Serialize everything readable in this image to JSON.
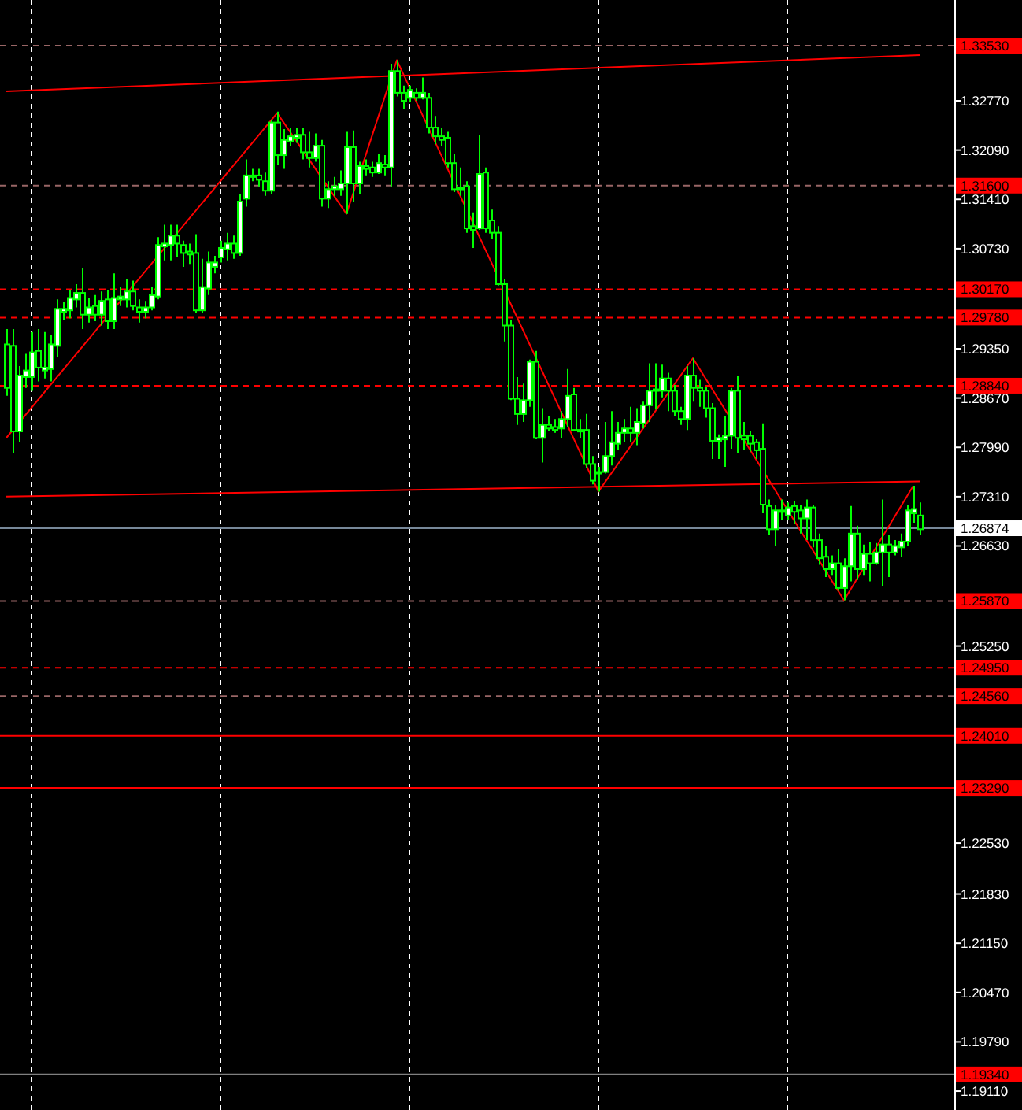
{
  "chart_data": {
    "type": "candlestick",
    "color": "#00ff00",
    "categories": [
      null,
      null,
      null,
      null,
      null,
      null,
      null,
      null,
      null,
      null,
      null,
      null,
      null,
      null,
      null,
      null,
      null,
      null,
      null,
      null,
      null,
      null,
      null,
      null,
      null,
      null,
      null,
      null,
      null,
      null,
      null,
      null,
      null,
      null,
      null,
      null,
      null,
      null,
      null,
      null,
      null,
      null,
      null,
      null,
      null,
      null,
      null,
      null,
      null,
      null,
      null,
      null,
      null,
      null,
      null,
      null,
      null,
      null,
      null,
      null,
      null,
      null,
      null,
      null,
      null,
      null,
      null,
      null,
      null,
      null,
      null,
      null,
      null,
      null,
      null,
      null,
      null,
      null,
      null,
      null,
      null,
      null,
      null,
      null,
      null,
      null,
      null,
      null,
      null,
      null,
      null,
      null,
      null,
      null,
      null,
      null,
      null,
      null,
      null,
      null,
      null,
      null,
      null,
      null,
      null,
      null,
      null,
      null,
      null,
      null,
      null,
      null,
      null,
      null,
      null,
      null,
      null,
      null,
      null,
      null,
      null,
      null,
      null,
      null,
      null,
      null,
      null,
      null,
      null,
      null,
      null,
      null,
      null,
      null,
      null,
      null,
      null,
      null,
      null,
      null,
      null,
      null,
      null,
      null,
      null,
      null
    ],
    "ohlc": [
      [
        1.2941,
        1.2962,
        1.287,
        1.2881
      ],
      [
        1.2939,
        1.2962,
        1.2791,
        1.2821
      ],
      [
        1.2821,
        1.2911,
        1.2806,
        1.2898
      ],
      [
        1.2896,
        1.2928,
        1.2881,
        1.2905
      ],
      [
        1.2896,
        1.2958,
        1.2877,
        1.293
      ],
      [
        1.2932,
        1.2962,
        1.289,
        1.2909
      ],
      [
        1.2905,
        1.2958,
        1.2894,
        1.2909
      ],
      [
        1.2907,
        1.2954,
        1.289,
        1.2941
      ],
      [
        1.2939,
        1.3003,
        1.2924,
        1.299
      ],
      [
        1.2986,
        1.2999,
        1.2975,
        1.299
      ],
      [
        1.2988,
        1.3016,
        1.2977,
        1.3005
      ],
      [
        1.3003,
        1.3024,
        1.2992,
        1.3012
      ],
      [
        1.3012,
        1.3046,
        1.2962,
        1.2982
      ],
      [
        1.2982,
        1.3005,
        1.2971,
        1.2992
      ],
      [
        1.2994,
        1.3009,
        1.2973,
        1.2982
      ],
      [
        1.2982,
        1.3014,
        1.2967,
        1.3001
      ],
      [
        1.3003,
        1.3016,
        1.2962,
        1.2973
      ],
      [
        1.2973,
        1.3039,
        1.2962,
        1.3005
      ],
      [
        1.3003,
        1.302,
        1.2994,
        1.3007
      ],
      [
        1.3003,
        1.3031,
        1.2992,
        1.3014
      ],
      [
        1.3014,
        1.3029,
        1.2988,
        1.2994
      ],
      [
        1.2992,
        1.3003,
        1.2971,
        1.2986
      ],
      [
        1.2986,
        1.3001,
        1.2977,
        1.2992
      ],
      [
        1.2992,
        1.302,
        1.2988,
        1.3009
      ],
      [
        1.3007,
        1.3089,
        1.3003,
        1.3078
      ],
      [
        1.3076,
        1.3106,
        1.3057,
        1.308
      ],
      [
        1.3078,
        1.3106,
        1.3057,
        1.3091
      ],
      [
        1.3091,
        1.3106,
        1.3061,
        1.308
      ],
      [
        1.3078,
        1.3084,
        1.3048,
        1.3067
      ],
      [
        1.3069,
        1.308,
        1.3052,
        1.3065
      ],
      [
        1.3067,
        1.3093,
        1.2984,
        1.2988
      ],
      [
        1.2988,
        1.3059,
        1.2984,
        1.302
      ],
      [
        1.3018,
        1.3069,
        1.3009,
        1.3054
      ],
      [
        1.3048,
        1.3063,
        1.3039,
        1.3054
      ],
      [
        1.3061,
        1.3084,
        1.3054,
        1.3074
      ],
      [
        1.3072,
        1.3095,
        1.3057,
        1.308
      ],
      [
        1.308,
        1.3091,
        1.3059,
        1.3067
      ],
      [
        1.3067,
        1.3149,
        1.3063,
        1.3138
      ],
      [
        1.3142,
        1.3196,
        1.3131,
        1.3174
      ],
      [
        1.3172,
        1.3183,
        1.3166,
        1.3174
      ],
      [
        1.3174,
        1.3183,
        1.3159,
        1.3168
      ],
      [
        1.3166,
        1.3178,
        1.3146,
        1.3153
      ],
      [
        1.3153,
        1.3251,
        1.3149,
        1.3247
      ],
      [
        1.3247,
        1.3262,
        1.3189,
        1.3202
      ],
      [
        1.3202,
        1.3238,
        1.3183,
        1.3223
      ],
      [
        1.3221,
        1.324,
        1.3215,
        1.3228
      ],
      [
        1.3226,
        1.324,
        1.3219,
        1.323
      ],
      [
        1.323,
        1.324,
        1.3196,
        1.3206
      ],
      [
        1.3206,
        1.3234,
        1.3185,
        1.3198
      ],
      [
        1.3198,
        1.3232,
        1.3193,
        1.3215
      ],
      [
        1.3215,
        1.3223,
        1.3131,
        1.3142
      ],
      [
        1.3142,
        1.3166,
        1.3129,
        1.3155
      ],
      [
        1.3155,
        1.3172,
        1.3146,
        1.3159
      ],
      [
        1.3155,
        1.3181,
        1.3146,
        1.3163
      ],
      [
        1.3163,
        1.3234,
        1.3121,
        1.3213
      ],
      [
        1.3213,
        1.3236,
        1.3138,
        1.3163
      ],
      [
        1.3163,
        1.3193,
        1.3149,
        1.3187
      ],
      [
        1.3187,
        1.3196,
        1.3174,
        1.3183
      ],
      [
        1.3185,
        1.3193,
        1.3172,
        1.3178
      ],
      [
        1.3178,
        1.3204,
        1.3176,
        1.3191
      ],
      [
        1.3189,
        1.3202,
        1.3174,
        1.3185
      ],
      [
        1.3185,
        1.3328,
        1.3159,
        1.3318
      ],
      [
        1.3318,
        1.3333,
        1.3283,
        1.3288
      ],
      [
        1.3288,
        1.3298,
        1.3266,
        1.3277
      ],
      [
        1.3281,
        1.3298,
        1.3275,
        1.3292
      ],
      [
        1.3288,
        1.3294,
        1.3277,
        1.3281
      ],
      [
        1.3281,
        1.3309,
        1.3279,
        1.3288
      ],
      [
        1.3281,
        1.3288,
        1.3232,
        1.324
      ],
      [
        1.324,
        1.3256,
        1.3217,
        1.3228
      ],
      [
        1.3228,
        1.324,
        1.3215,
        1.3223
      ],
      [
        1.3226,
        1.3234,
        1.3185,
        1.3191
      ],
      [
        1.3191,
        1.3204,
        1.3151,
        1.3155
      ],
      [
        1.3157,
        1.3185,
        1.3146,
        1.3155
      ],
      [
        1.3159,
        1.3166,
        1.3095,
        1.3101
      ],
      [
        1.3104,
        1.3123,
        1.3074,
        1.3099
      ],
      [
        1.3101,
        1.323,
        1.3099,
        1.3176
      ],
      [
        1.3178,
        1.3185,
        1.3095,
        1.3101
      ],
      [
        1.3112,
        1.3127,
        1.3086,
        1.3095
      ],
      [
        1.3095,
        1.3104,
        1.3022,
        1.3024
      ],
      [
        1.3024,
        1.3031,
        1.2945,
        1.2967
      ],
      [
        1.2967,
        1.2975,
        1.2864,
        1.2866
      ],
      [
        1.2866,
        1.2896,
        1.283,
        1.2845
      ],
      [
        1.2845,
        1.2887,
        1.2834,
        1.2864
      ],
      [
        1.2864,
        1.292,
        1.2855,
        1.2917
      ],
      [
        1.2917,
        1.2932,
        1.281,
        1.2812
      ],
      [
        1.2812,
        1.2853,
        1.2778,
        1.283
      ],
      [
        1.283,
        1.2842,
        1.2821,
        1.2825
      ],
      [
        1.2827,
        1.2838,
        1.2819,
        1.2823
      ],
      [
        1.2825,
        1.2849,
        1.2812,
        1.2838
      ],
      [
        1.2838,
        1.2907,
        1.2827,
        1.287
      ],
      [
        1.2872,
        1.2881,
        1.2821,
        1.2823
      ],
      [
        1.2823,
        1.2838,
        1.2812,
        1.2821
      ],
      [
        1.2823,
        1.2845,
        1.277,
        1.2776
      ],
      [
        1.2776,
        1.2787,
        1.2748,
        1.2753
      ],
      [
        1.2763,
        1.2772,
        1.2738,
        1.2765
      ],
      [
        1.2765,
        1.2834,
        1.2763,
        1.2787
      ],
      [
        1.2787,
        1.2849,
        1.2774,
        1.2806
      ],
      [
        1.2804,
        1.2834,
        1.2795,
        1.2819
      ],
      [
        1.2819,
        1.2838,
        1.2806,
        1.2825
      ],
      [
        1.2825,
        1.2855,
        1.2806,
        1.2819
      ],
      [
        1.2819,
        1.2853,
        1.2802,
        1.2834
      ],
      [
        1.2832,
        1.2862,
        1.2825,
        1.2857
      ],
      [
        1.2857,
        1.2915,
        1.2834,
        1.2877
      ],
      [
        1.2877,
        1.2915,
        1.2851,
        1.2879
      ],
      [
        1.2877,
        1.2913,
        1.2868,
        1.2894
      ],
      [
        1.2894,
        1.2902,
        1.2849,
        1.2877
      ],
      [
        1.2877,
        1.2885,
        1.2842,
        1.2849
      ],
      [
        1.2849,
        1.2855,
        1.283,
        1.2838
      ],
      [
        1.2838,
        1.2911,
        1.2823,
        1.2898
      ],
      [
        1.2898,
        1.2922,
        1.2862,
        1.2881
      ],
      [
        1.2881,
        1.2892,
        1.2855,
        1.2877
      ],
      [
        1.2877,
        1.2883,
        1.284,
        1.2853
      ],
      [
        1.2853,
        1.286,
        1.2783,
        1.2808
      ],
      [
        1.2808,
        1.2817,
        1.2783,
        1.2812
      ],
      [
        1.281,
        1.2842,
        1.2772,
        1.2815
      ],
      [
        1.2815,
        1.2881,
        1.2797,
        1.2877
      ],
      [
        1.2877,
        1.2898,
        1.2791,
        1.2812
      ],
      [
        1.2815,
        1.2834,
        1.2795,
        1.281
      ],
      [
        1.2815,
        1.2821,
        1.2793,
        1.2804
      ],
      [
        1.2806,
        1.281,
        1.2783,
        1.2795
      ],
      [
        1.2797,
        1.2832,
        1.2708,
        1.272
      ],
      [
        1.2718,
        1.2727,
        1.2678,
        1.2686
      ],
      [
        1.2686,
        1.272,
        1.2663,
        1.2712
      ],
      [
        1.2712,
        1.2727,
        1.2699,
        1.271
      ],
      [
        1.2705,
        1.2723,
        1.2699,
        1.2716
      ],
      [
        1.2718,
        1.2725,
        1.2693,
        1.271
      ],
      [
        1.2712,
        1.272,
        1.268,
        1.2701
      ],
      [
        1.2701,
        1.2727,
        1.2671,
        1.2716
      ],
      [
        1.2716,
        1.272,
        1.2661,
        1.2671
      ],
      [
        1.2671,
        1.268,
        1.2637,
        1.2646
      ],
      [
        1.2648,
        1.2663,
        1.262,
        1.2631
      ],
      [
        1.2631,
        1.265,
        1.2622,
        1.2639
      ],
      [
        1.2639,
        1.2658,
        1.2601,
        1.2605
      ],
      [
        1.2605,
        1.2646,
        1.2588,
        1.2635
      ],
      [
        1.2635,
        1.2718,
        1.2614,
        1.268
      ],
      [
        1.268,
        1.2691,
        1.2616,
        1.2631
      ],
      [
        1.2631,
        1.2665,
        1.2622,
        1.2652
      ],
      [
        1.2652,
        1.2669,
        1.2614,
        1.2639
      ],
      [
        1.2639,
        1.2667,
        1.2637,
        1.2654
      ],
      [
        1.2654,
        1.2727,
        1.2607,
        1.2665
      ],
      [
        1.2665,
        1.2678,
        1.262,
        1.2654
      ],
      [
        1.2654,
        1.2671,
        1.265,
        1.2663
      ],
      [
        1.2661,
        1.268,
        1.2648,
        1.2669
      ],
      [
        1.2669,
        1.272,
        1.2663,
        1.2712
      ],
      [
        1.2708,
        1.2746,
        1.2695,
        1.2714
      ],
      [
        1.2705,
        1.2723,
        1.2678,
        1.2686
      ]
    ],
    "series": [
      {
        "type": "line",
        "color": "#ff0000",
        "values": [
          1.2812,
          null,
          null,
          null,
          null,
          null,
          null,
          null,
          null,
          null,
          null,
          null,
          null,
          null,
          null,
          null,
          null,
          null,
          null,
          null,
          null,
          null,
          null,
          null,
          null,
          null,
          null,
          null,
          null,
          null,
          null,
          null,
          null,
          null,
          null,
          null,
          null,
          null,
          null,
          null,
          null,
          null,
          null,
          1.326,
          null,
          null,
          null,
          null,
          null,
          null,
          null,
          null,
          null,
          null,
          1.3121,
          null,
          null,
          null,
          null,
          null,
          null,
          null,
          1.3333,
          null,
          null,
          null,
          null,
          null,
          null,
          null,
          null,
          null,
          null,
          null,
          null,
          null,
          null,
          null,
          null,
          null,
          null,
          null,
          null,
          null,
          null,
          null,
          null,
          null,
          null,
          null,
          null,
          null,
          null,
          null,
          1.2738,
          null,
          null,
          null,
          null,
          null,
          null,
          null,
          null,
          null,
          null,
          null,
          null,
          null,
          null,
          1.2922,
          null,
          null,
          null,
          null,
          null,
          null,
          null,
          null,
          null,
          null,
          null,
          null,
          null,
          null,
          null,
          null,
          null,
          null,
          null,
          null,
          null,
          null,
          null,
          1.2588,
          null,
          null,
          null,
          null,
          null,
          null,
          null,
          null,
          null,
          null,
          1.2746,
          null
        ]
      },
      {
        "type": "line",
        "color": "#ff0000",
        "values": [
          1.329,
          null,
          null,
          null,
          null,
          null,
          null,
          null,
          null,
          null,
          null,
          null,
          null,
          null,
          null,
          null,
          null,
          null,
          null,
          null,
          null,
          null,
          null,
          null,
          null,
          null,
          null,
          null,
          null,
          null,
          null,
          null,
          null,
          null,
          null,
          null,
          null,
          null,
          null,
          null,
          null,
          null,
          null,
          null,
          null,
          null,
          null,
          null,
          null,
          null,
          null,
          null,
          null,
          null,
          null,
          null,
          null,
          null,
          null,
          null,
          null,
          null,
          null,
          null,
          null,
          null,
          null,
          null,
          null,
          null,
          null,
          null,
          null,
          null,
          null,
          null,
          null,
          null,
          null,
          null,
          null,
          null,
          null,
          null,
          null,
          null,
          null,
          null,
          null,
          null,
          null,
          null,
          null,
          null,
          null,
          null,
          null,
          null,
          null,
          null,
          null,
          null,
          null,
          null,
          null,
          null,
          null,
          null,
          null,
          null,
          null,
          null,
          null,
          null,
          null,
          null,
          null,
          null,
          null,
          null,
          null,
          null,
          null,
          null,
          null,
          null,
          null,
          null,
          null,
          null,
          null,
          null,
          null,
          null,
          null,
          null,
          null,
          null,
          null,
          null,
          null,
          null,
          null,
          null,
          null,
          1.334
        ]
      },
      {
        "type": "line",
        "color": "#ff0000",
        "values": [
          1.2731,
          null,
          null,
          null,
          null,
          null,
          null,
          null,
          null,
          null,
          null,
          null,
          null,
          null,
          null,
          null,
          null,
          null,
          null,
          null,
          null,
          null,
          null,
          null,
          null,
          null,
          null,
          null,
          null,
          null,
          null,
          null,
          null,
          null,
          null,
          null,
          null,
          null,
          null,
          null,
          null,
          null,
          null,
          null,
          null,
          null,
          null,
          null,
          null,
          null,
          null,
          null,
          null,
          null,
          null,
          null,
          null,
          null,
          null,
          null,
          null,
          null,
          null,
          null,
          null,
          null,
          null,
          null,
          null,
          null,
          null,
          null,
          null,
          null,
          null,
          null,
          null,
          null,
          null,
          null,
          null,
          null,
          null,
          null,
          null,
          null,
          null,
          null,
          null,
          null,
          null,
          null,
          null,
          null,
          null,
          null,
          null,
          null,
          null,
          null,
          null,
          null,
          null,
          null,
          null,
          null,
          null,
          null,
          null,
          null,
          null,
          null,
          null,
          null,
          null,
          null,
          null,
          null,
          null,
          null,
          null,
          null,
          null,
          null,
          null,
          null,
          null,
          null,
          null,
          null,
          null,
          null,
          null,
          null,
          null,
          null,
          null,
          null,
          null,
          null,
          null,
          null,
          null,
          null,
          null,
          1.2752
        ]
      }
    ],
    "ylim": [
      1.1885,
      1.3416
    ],
    "yticks": [
      {
        "value": 1.3277,
        "label": "1.32770"
      },
      {
        "value": 1.3209,
        "label": "1.32090"
      },
      {
        "value": 1.3141,
        "label": "1.31410"
      },
      {
        "value": 1.3073,
        "label": "1.30730"
      },
      {
        "value": 1.2935,
        "label": "1.29350"
      },
      {
        "value": 1.2867,
        "label": "1.28670"
      },
      {
        "value": 1.2799,
        "label": "1.27990"
      },
      {
        "value": 1.2731,
        "label": "1.27310"
      },
      {
        "value": 1.2663,
        "label": "1.26630"
      },
      {
        "value": 1.2525,
        "label": "1.25250"
      },
      {
        "value": 1.2253,
        "label": "1.22530"
      },
      {
        "value": 1.2183,
        "label": "1.21830"
      },
      {
        "value": 1.2115,
        "label": "1.21150"
      },
      {
        "value": 1.2047,
        "label": "1.20470"
      },
      {
        "value": 1.1979,
        "label": "1.19790"
      },
      {
        "value": 1.1911,
        "label": "1.19110"
      }
    ],
    "ref_lines": [
      {
        "axis": "y",
        "value": 1.3353,
        "label": "1.33530",
        "color": "#996666",
        "line_style": "dashed"
      },
      {
        "axis": "y",
        "value": 1.316,
        "label": "1.31600",
        "color": "#996666",
        "line_style": "dashed"
      },
      {
        "axis": "y",
        "value": 1.3017,
        "label": "1.30170",
        "color": "#ff0000",
        "line_style": "dashed"
      },
      {
        "axis": "y",
        "value": 1.2978,
        "label": "1.29780",
        "color": "#ff0000",
        "line_style": "dashed"
      },
      {
        "axis": "y",
        "value": 1.2884,
        "label": "1.28840",
        "color": "#ff0000",
        "line_style": "dashed"
      },
      {
        "axis": "y",
        "value": 1.26874,
        "label": "1.26874",
        "color": "#778899",
        "line_style": "solid"
      },
      {
        "axis": "y",
        "value": 1.2587,
        "label": "1.25870",
        "color": "#996666",
        "line_style": "dashed"
      },
      {
        "axis": "y",
        "value": 1.2495,
        "label": "1.24950",
        "color": "#ff0000",
        "line_style": "dashed"
      },
      {
        "axis": "y",
        "value": 1.2456,
        "label": "1.24560",
        "color": "#996666",
        "line_style": "dashed"
      },
      {
        "axis": "y",
        "value": 1.2401,
        "label": "1.24010",
        "color": "#ff0000",
        "line_style": "solid"
      },
      {
        "axis": "y",
        "value": 1.2329,
        "label": "1.23290",
        "color": "#ff0000",
        "line_style": "solid"
      },
      {
        "axis": "y",
        "value": 1.1934,
        "label": "1.19340",
        "color": "#808080",
        "line_style": "solid"
      }
    ]
  }
}
